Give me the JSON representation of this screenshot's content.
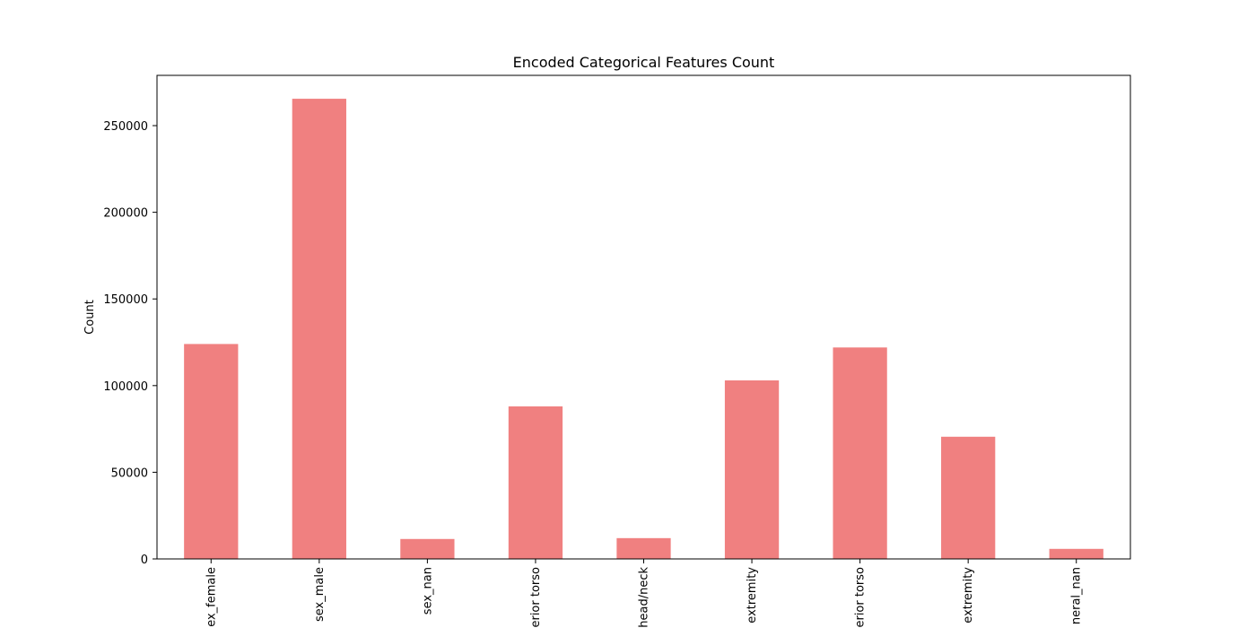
{
  "chart_data": {
    "type": "bar",
    "title": "Encoded Categorical Features Count",
    "xlabel": "",
    "ylabel": "Count",
    "categories": [
      "ex_female",
      "sex_male",
      "sex_nan",
      "erior torso",
      "head/neck",
      "extremity",
      "erior torso",
      "extremity",
      "neral_nan"
    ],
    "values": [
      124000,
      265500,
      11500,
      88000,
      12000,
      103000,
      122000,
      70500,
      5800
    ],
    "ylim": [
      0,
      279000
    ],
    "yticks": [
      0,
      50000,
      100000,
      150000,
      200000,
      250000
    ],
    "grid": false,
    "legend": "none",
    "bar_color": "#f08080"
  }
}
